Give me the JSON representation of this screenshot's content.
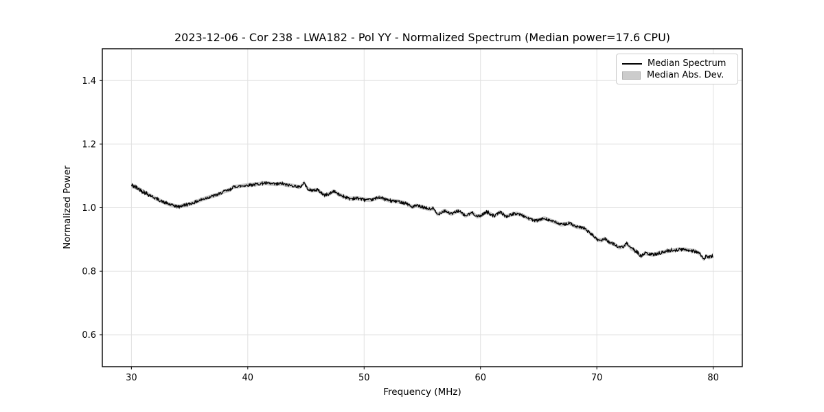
{
  "title": "2023-12-06 - Cor 238 - LWA182 - Pol YY - Normalized Spectrum (Median power=17.6 CPU)",
  "chart_data": {
    "type": "line",
    "title": "2023-12-06 - Cor 238 - LWA182 - Pol YY - Normalized Spectrum (Median power=17.6 CPU)",
    "xlabel": "Frequency (MHz)",
    "ylabel": "Normalized Power",
    "xlim": [
      27.5,
      82.5
    ],
    "ylim": [
      0.5,
      1.5
    ],
    "xticks": [
      {
        "v": 30,
        "label": "30"
      },
      {
        "v": 40,
        "label": "40"
      },
      {
        "v": 50,
        "label": "50"
      },
      {
        "v": 60,
        "label": "60"
      },
      {
        "v": 70,
        "label": "70"
      },
      {
        "v": 80,
        "label": "80"
      }
    ],
    "yticks": [
      {
        "v": 0.6,
        "label": "0.6"
      },
      {
        "v": 0.8,
        "label": "0.8"
      },
      {
        "v": 1.0,
        "label": "1.0"
      },
      {
        "v": 1.2,
        "label": "1.2"
      },
      {
        "v": 1.4,
        "label": "1.4"
      }
    ],
    "grid": true,
    "grid_color": "#e0e0e0",
    "background": "#ffffff",
    "legend": {
      "position": "upper right",
      "entries": [
        {
          "label": "Median Spectrum",
          "type": "line",
          "color": "#000000"
        },
        {
          "label": "Median Abs. Dev.",
          "type": "patch",
          "color": "#cccccc"
        }
      ]
    },
    "annotations": {
      "median_power": "17.6 CPU"
    },
    "band": {
      "name": "Median Abs. Dev.",
      "color": "#c9c9c9",
      "halfwidth": 0.0065
    },
    "noise_amplitude": 0.0042,
    "series": [
      {
        "name": "Median Spectrum",
        "color": "#000000",
        "x": [
          30.0,
          30.3,
          30.6,
          31.0,
          31.4,
          31.8,
          32.2,
          32.6,
          33.0,
          33.4,
          33.8,
          34.1,
          34.4,
          34.8,
          35.2,
          35.6,
          36.0,
          36.5,
          37.0,
          37.5,
          38.0,
          38.5,
          38.7,
          39.4,
          40.0,
          40.5,
          41.0,
          41.5,
          42.0,
          42.5,
          42.9,
          43.3,
          43.7,
          44.1,
          44.5,
          44.85,
          45.1,
          45.4,
          46.0,
          46.6,
          47.0,
          47.4,
          47.8,
          48.2,
          48.8,
          49.4,
          50.0,
          50.6,
          51.3,
          52.2,
          52.9,
          53.7,
          54.1,
          54.5,
          55.1,
          55.7,
          55.9,
          56.3,
          56.9,
          57.5,
          58.1,
          58.7,
          59.3,
          59.7,
          60.0,
          60.5,
          61.2,
          61.7,
          62.2,
          62.6,
          63.1,
          63.6,
          64.1,
          64.7,
          65.1,
          65.5,
          66.0,
          66.4,
          66.9,
          67.3,
          67.7,
          68.1,
          68.5,
          68.9,
          69.3,
          69.7,
          70.0,
          70.4,
          70.7,
          71.1,
          71.5,
          71.9,
          72.3,
          72.6,
          72.9,
          73.2,
          73.5,
          73.8,
          74.1,
          74.5,
          74.9,
          75.3,
          75.7,
          76.1,
          76.5,
          76.9,
          77.3,
          77.7,
          78.1,
          78.5,
          78.9,
          79.15,
          79.4,
          79.6,
          79.8,
          80.0
        ],
        "y": [
          1.071,
          1.066,
          1.06,
          1.051,
          1.043,
          1.035,
          1.027,
          1.02,
          1.014,
          1.009,
          1.005,
          1.003,
          1.007,
          1.01,
          1.014,
          1.019,
          1.025,
          1.031,
          1.037,
          1.042,
          1.052,
          1.056,
          1.065,
          1.068,
          1.071,
          1.073,
          1.075,
          1.078,
          1.075,
          1.074,
          1.076,
          1.072,
          1.07,
          1.068,
          1.064,
          1.08,
          1.061,
          1.054,
          1.056,
          1.039,
          1.043,
          1.053,
          1.042,
          1.036,
          1.028,
          1.03,
          1.026,
          1.024,
          1.033,
          1.022,
          1.02,
          1.013,
          1.002,
          1.007,
          1.0,
          0.995,
          1.0,
          0.978,
          0.991,
          0.98,
          0.991,
          0.974,
          0.985,
          0.972,
          0.974,
          0.987,
          0.974,
          0.987,
          0.972,
          0.978,
          0.982,
          0.976,
          0.967,
          0.959,
          0.962,
          0.967,
          0.96,
          0.955,
          0.947,
          0.949,
          0.951,
          0.942,
          0.938,
          0.936,
          0.924,
          0.912,
          0.9,
          0.897,
          0.904,
          0.89,
          0.886,
          0.874,
          0.878,
          0.888,
          0.872,
          0.867,
          0.86,
          0.846,
          0.857,
          0.854,
          0.852,
          0.857,
          0.86,
          0.864,
          0.866,
          0.868,
          0.869,
          0.868,
          0.866,
          0.863,
          0.854,
          0.836,
          0.849,
          0.843,
          0.846,
          0.848
        ]
      }
    ]
  }
}
